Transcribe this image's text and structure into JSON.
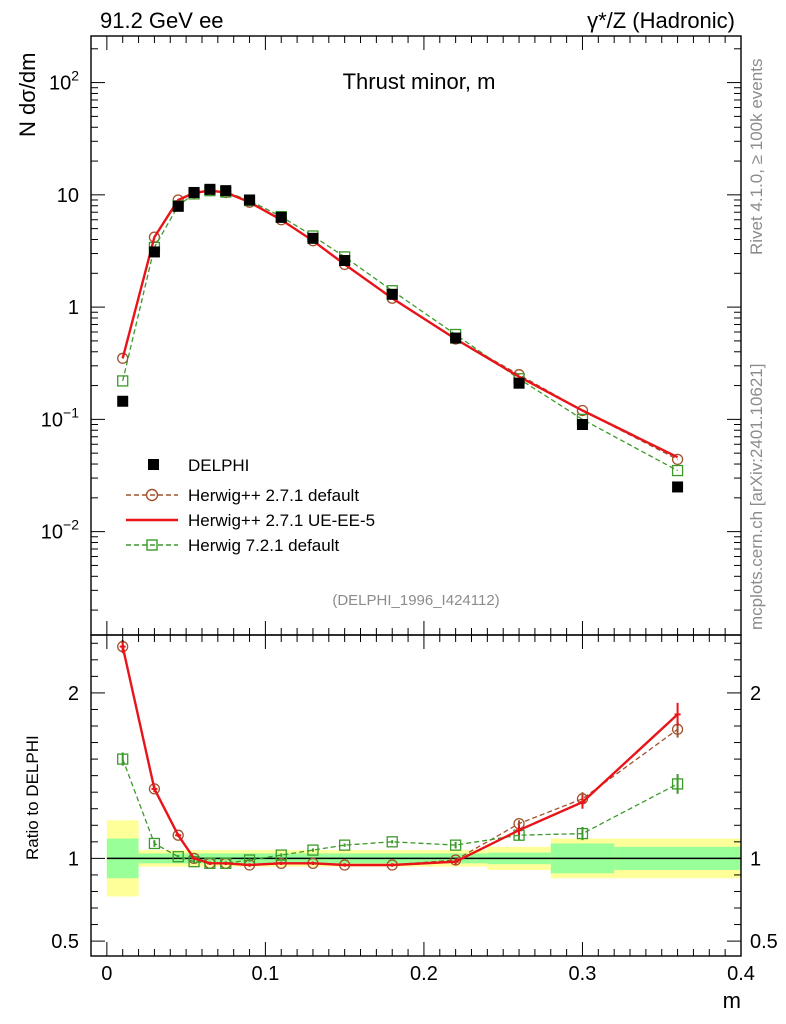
{
  "header": {
    "left": "91.2 GeV ee",
    "right": "γ*/Z (Hadronic)"
  },
  "side_labels": {
    "rivet": "Rivet 4.1.0, ≥ 100k events",
    "mcplots": "mcplots.cern.ch [arXiv:2401.10621]"
  },
  "chart_data": [
    {
      "type": "line",
      "title": "Thrust minor, m",
      "ylabel": "N  dσ/dm",
      "yscale": "log",
      "ylim": [
        0.0012,
        260
      ],
      "xlim": [
        -0.01,
        0.4
      ],
      "analysis_tag": "(DELPHI_1996_I424112)",
      "yticks": [
        {
          "value": 0.01,
          "base": "10",
          "exp": "−2"
        },
        {
          "value": 0.1,
          "base": "10",
          "exp": "−1"
        },
        {
          "value": 1,
          "label": "1"
        },
        {
          "value": 10,
          "label": "10"
        },
        {
          "value": 100,
          "base": "10",
          "exp": "2"
        }
      ],
      "x": [
        0.01,
        0.03,
        0.045,
        0.055,
        0.065,
        0.075,
        0.09,
        0.11,
        0.13,
        0.15,
        0.18,
        0.22,
        0.26,
        0.3,
        0.36
      ],
      "series": [
        {
          "name": "DELPHI",
          "style": "data",
          "color": "#000000",
          "values": [
            0.145,
            3.1,
            7.9,
            10.5,
            11.2,
            10.9,
            9.0,
            6.3,
            4.1,
            2.6,
            1.3,
            0.53,
            0.21,
            0.09,
            0.025
          ]
        },
        {
          "name": "Herwig++ 2.7.1 default",
          "style": "circle-dashed",
          "color": "#a0522d",
          "values": [
            0.35,
            4.2,
            9.0,
            10.4,
            10.9,
            10.5,
            8.6,
            6.0,
            3.9,
            2.4,
            1.2,
            0.52,
            0.25,
            0.12,
            0.044
          ]
        },
        {
          "name": "Herwig++ 2.7.1 UE-EE-5",
          "style": "solid",
          "color": "#e8141a",
          "values": [
            0.35,
            4.2,
            9.0,
            10.4,
            10.9,
            10.5,
            8.6,
            6.0,
            3.9,
            2.4,
            1.2,
            0.52,
            0.24,
            0.12,
            0.046
          ]
        },
        {
          "name": "Herwig 7.2.1 default",
          "style": "square-dashed",
          "color": "#3c9a2a",
          "values": [
            0.22,
            3.4,
            8.0,
            10.2,
            10.9,
            10.6,
            8.9,
            6.4,
            4.3,
            2.8,
            1.4,
            0.57,
            0.23,
            0.1,
            0.035
          ]
        }
      ]
    },
    {
      "type": "line",
      "ylabel": "Ratio to DELPHI",
      "xlabel": "m",
      "ylim": [
        0.41,
        2.35
      ],
      "xlim": [
        -0.01,
        0.4
      ],
      "yticks": [
        {
          "value": 0.5,
          "label": "0.5"
        },
        {
          "value": 1,
          "label": "1"
        },
        {
          "value": 2,
          "label": "2"
        }
      ],
      "xticks": [
        {
          "value": 0,
          "label": "0"
        },
        {
          "value": 0.1,
          "label": "0.1"
        },
        {
          "value": 0.2,
          "label": "0.2"
        },
        {
          "value": 0.3,
          "label": "0.3"
        },
        {
          "value": 0.4,
          "label": "0.4"
        }
      ],
      "uncertainty_bins": [
        {
          "lo": 0.0,
          "hi": 0.02,
          "stat": 0.12,
          "total": 0.23
        },
        {
          "lo": 0.02,
          "hi": 0.04,
          "stat": 0.03,
          "total": 0.05
        },
        {
          "lo": 0.04,
          "hi": 0.05,
          "stat": 0.03,
          "total": 0.05
        },
        {
          "lo": 0.05,
          "hi": 0.06,
          "stat": 0.03,
          "total": 0.05
        },
        {
          "lo": 0.06,
          "hi": 0.07,
          "stat": 0.03,
          "total": 0.05
        },
        {
          "lo": 0.07,
          "hi": 0.08,
          "stat": 0.03,
          "total": 0.05
        },
        {
          "lo": 0.08,
          "hi": 0.1,
          "stat": 0.03,
          "total": 0.05
        },
        {
          "lo": 0.1,
          "hi": 0.12,
          "stat": 0.03,
          "total": 0.05
        },
        {
          "lo": 0.12,
          "hi": 0.14,
          "stat": 0.03,
          "total": 0.05
        },
        {
          "lo": 0.14,
          "hi": 0.16,
          "stat": 0.03,
          "total": 0.05
        },
        {
          "lo": 0.16,
          "hi": 0.2,
          "stat": 0.03,
          "total": 0.05
        },
        {
          "lo": 0.2,
          "hi": 0.24,
          "stat": 0.03,
          "total": 0.05
        },
        {
          "lo": 0.24,
          "hi": 0.28,
          "stat": 0.035,
          "total": 0.07
        },
        {
          "lo": 0.28,
          "hi": 0.32,
          "stat": 0.09,
          "total": 0.12
        },
        {
          "lo": 0.32,
          "hi": 0.4,
          "stat": 0.07,
          "total": 0.12
        }
      ],
      "x": [
        0.01,
        0.03,
        0.045,
        0.055,
        0.065,
        0.075,
        0.09,
        0.11,
        0.13,
        0.15,
        0.18,
        0.22,
        0.26,
        0.3,
        0.36
      ],
      "series": [
        {
          "name": "Herwig++ 2.7.1 default",
          "style": "circle-dashed",
          "color": "#a0522d",
          "values": [
            2.28,
            1.42,
            1.14,
            1.0,
            0.97,
            0.97,
            0.96,
            0.97,
            0.97,
            0.96,
            0.96,
            0.99,
            1.21,
            1.36,
            1.78
          ],
          "errors": [
            0.03,
            0.02,
            0.01,
            0.01,
            0.01,
            0.01,
            0.01,
            0.01,
            0.01,
            0.01,
            0.01,
            0.01,
            0.02,
            0.04,
            0.05
          ]
        },
        {
          "name": "Herwig++ 2.7.1 UE-EE-5",
          "style": "solid",
          "color": "#e8141a",
          "values": [
            2.28,
            1.42,
            1.14,
            1.0,
            0.97,
            0.97,
            0.96,
            0.97,
            0.97,
            0.96,
            0.96,
            0.98,
            1.17,
            1.34,
            1.87
          ],
          "errors": [
            0.04,
            0.02,
            0.01,
            0.01,
            0.01,
            0.01,
            0.01,
            0.01,
            0.01,
            0.01,
            0.01,
            0.02,
            0.03,
            0.04,
            0.07
          ]
        },
        {
          "name": "Herwig 7.2.1 default",
          "style": "square-dashed",
          "color": "#3c9a2a",
          "values": [
            1.6,
            1.09,
            1.01,
            0.98,
            0.97,
            0.97,
            0.99,
            1.02,
            1.05,
            1.08,
            1.1,
            1.08,
            1.14,
            1.15,
            1.45
          ],
          "errors": [
            0.04,
            0.02,
            0.01,
            0.01,
            0.01,
            0.01,
            0.01,
            0.01,
            0.01,
            0.01,
            0.01,
            0.02,
            0.03,
            0.04,
            0.06
          ]
        }
      ]
    }
  ]
}
